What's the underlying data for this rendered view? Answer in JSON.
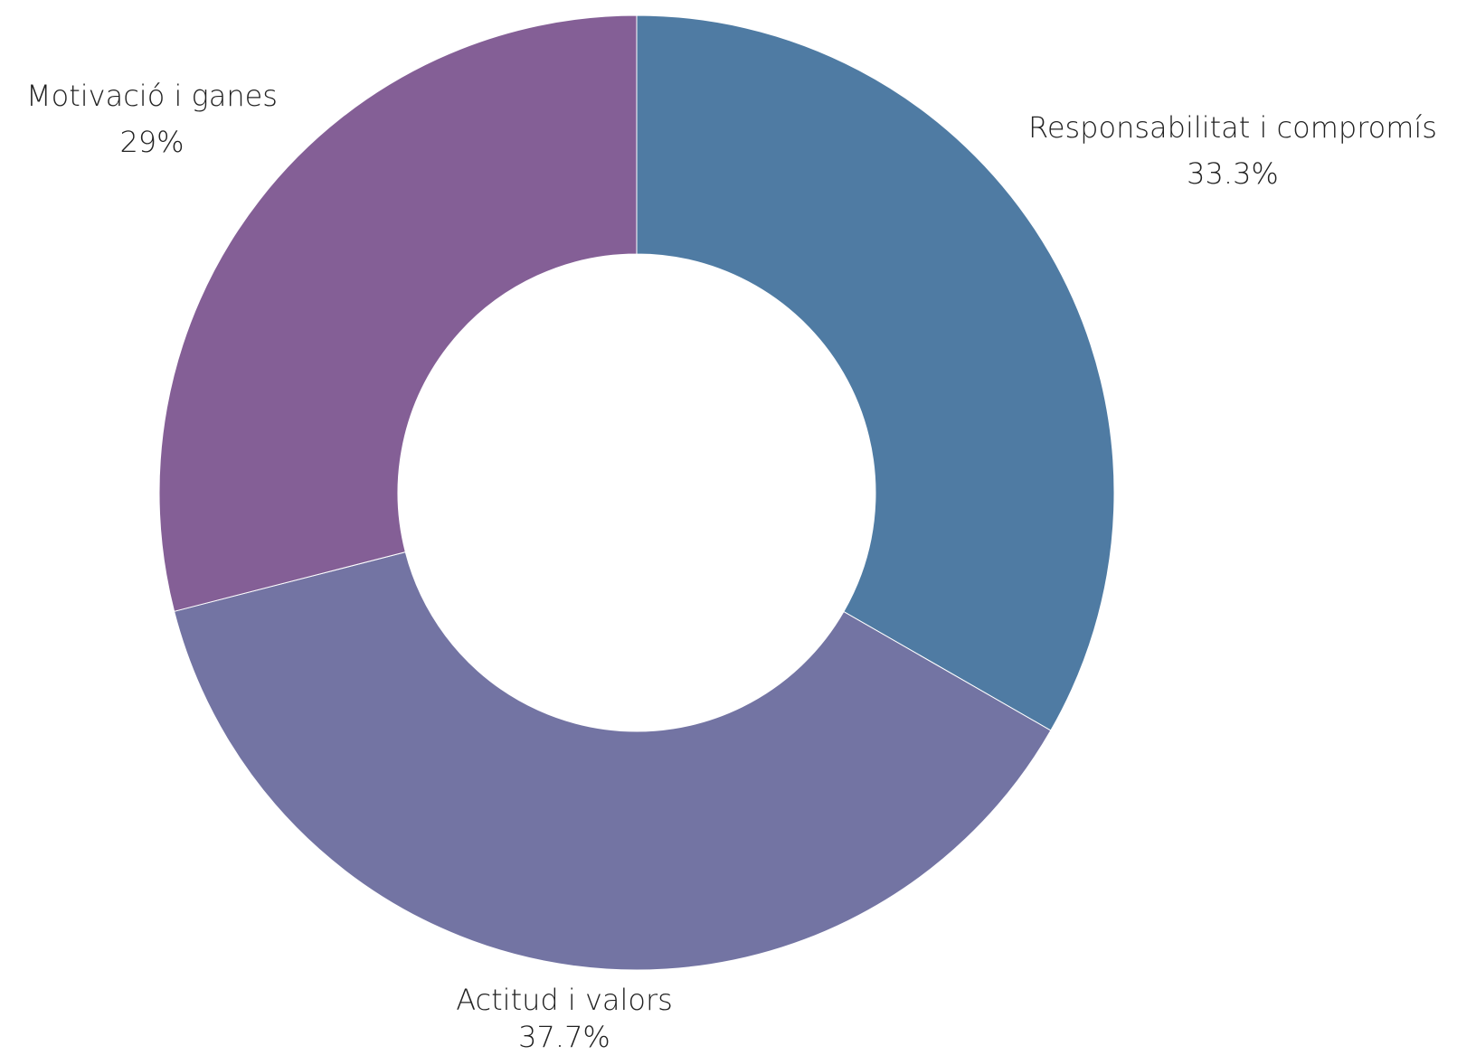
{
  "chart_data": {
    "type": "pie",
    "variant": "donut",
    "title": "",
    "legend": "none",
    "slices": [
      {
        "label": "Responsabilitat i compromís",
        "value": 33.3,
        "value_label": "33.3%",
        "color": "#4f7ba3"
      },
      {
        "label": "Actitud i valors",
        "value": 37.7,
        "value_label": "37.7%",
        "color": "#7374a3"
      },
      {
        "label": "Motivació i ganes",
        "value": 29,
        "value_label": "29%",
        "color": "#845f96"
      }
    ]
  }
}
